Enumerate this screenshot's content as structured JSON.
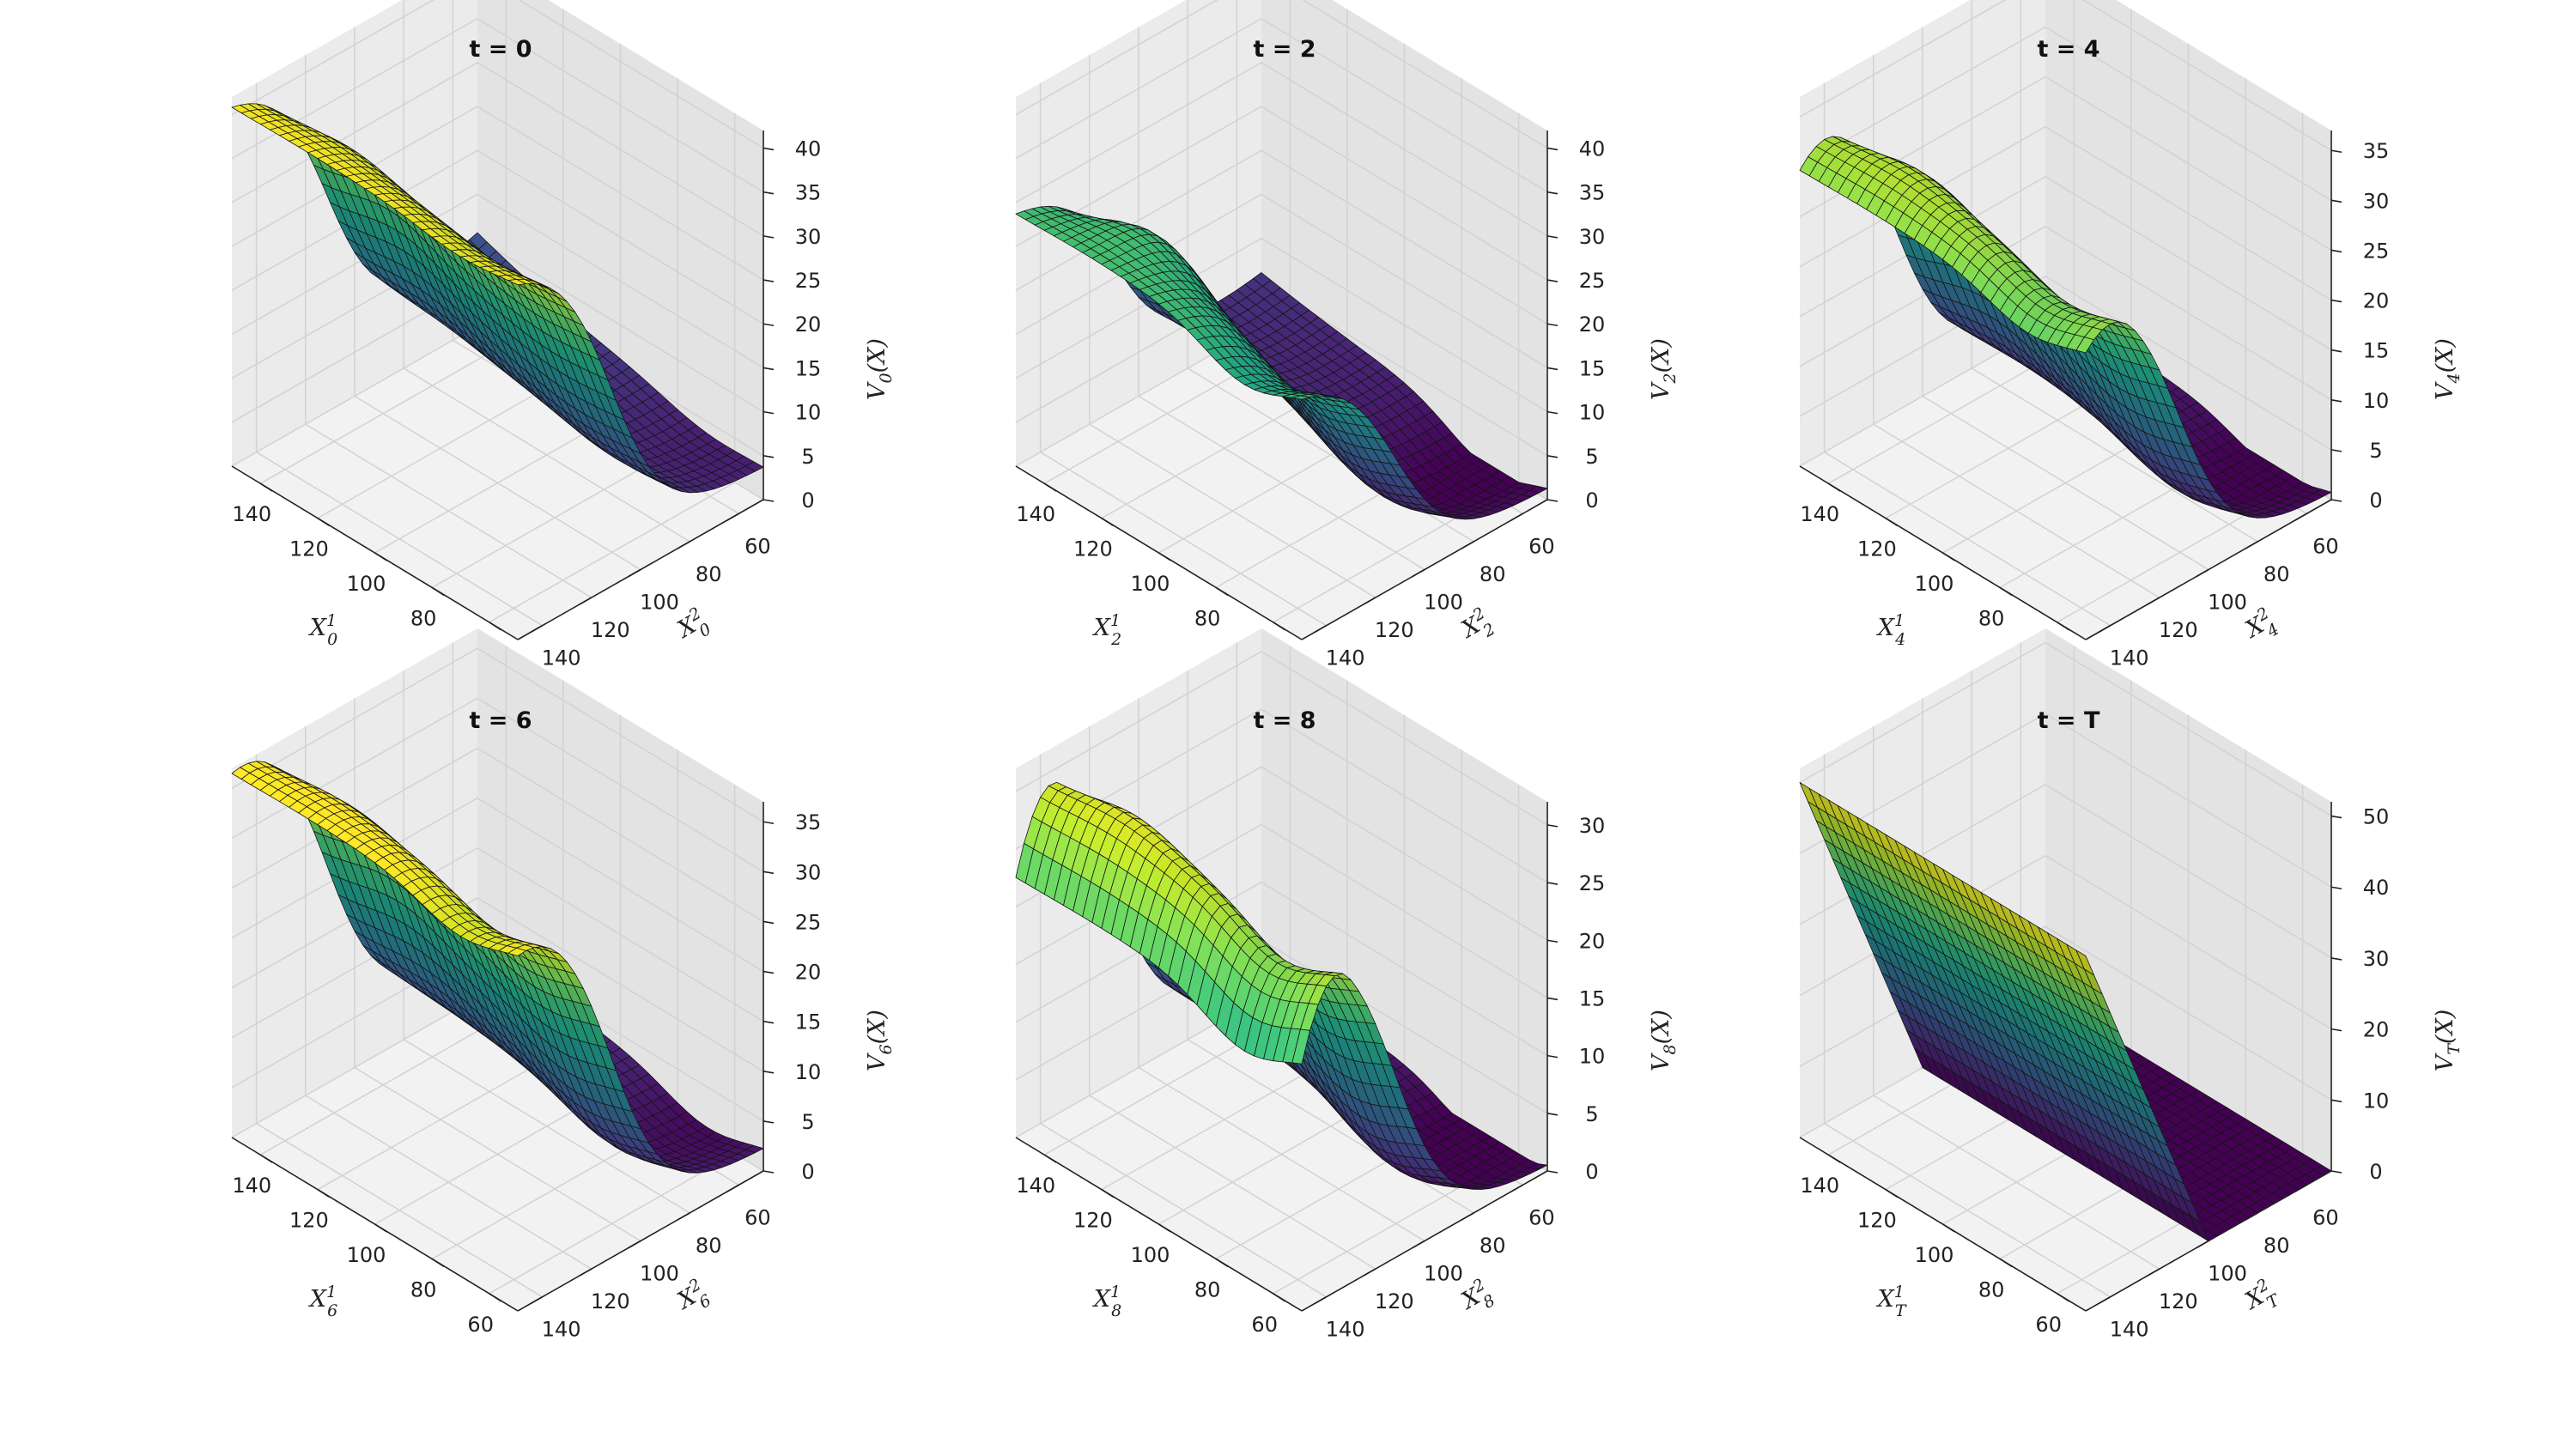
{
  "chart_data": [
    {
      "type": "surface3d",
      "title": "t = 0",
      "xlabel": "X_0^1",
      "ylabel": "X_0^2",
      "zlabel": "V_0(X)",
      "x_range": [
        50,
        150
      ],
      "y_range": [
        50,
        150
      ],
      "zlim": [
        0,
        42
      ],
      "xticks": [
        "60",
        "80",
        "100",
        "120",
        "140"
      ],
      "yticks": [
        "60",
        "80",
        "100",
        "120",
        "140"
      ],
      "zticks": [
        "0",
        "5",
        "10",
        "15",
        "20",
        "25",
        "30",
        "35",
        "40"
      ],
      "params": {
        "k": 38,
        "z0": 4.0,
        "dip": 0.2,
        "edge": 0.3,
        "bump": 3.0,
        "tail": 3.5,
        "topfall": 0
      }
    },
    {
      "type": "surface3d",
      "title": "t = 2",
      "xlabel": "X_2^1",
      "ylabel": "X_2^2",
      "zlabel": "V_2(X)",
      "x_range": [
        50,
        150
      ],
      "y_range": [
        50,
        150
      ],
      "zlim": [
        0,
        42
      ],
      "xticks": [
        "60",
        "80",
        "100",
        "120",
        "140"
      ],
      "yticks": [
        "60",
        "80",
        "100",
        "120",
        "140"
      ],
      "zticks": [
        "0",
        "5",
        "10",
        "15",
        "20",
        "25",
        "30",
        "35",
        "40"
      ],
      "params": {
        "k": 27,
        "z0": 2.5,
        "dip": 0.6,
        "edge": 0.15,
        "bump": 5.5,
        "tail": 2.0,
        "topfall": 0
      }
    },
    {
      "type": "surface3d",
      "title": "t = 4",
      "xlabel": "X_4^1",
      "ylabel": "X_4^2",
      "zlabel": "V_4(X)",
      "x_range": [
        50,
        150
      ],
      "y_range": [
        50,
        150
      ],
      "zlim": [
        0,
        37
      ],
      "xticks": [
        "60",
        "80",
        "100",
        "120",
        "140"
      ],
      "yticks": [
        "60",
        "80",
        "100",
        "120",
        "140"
      ],
      "zticks": [
        "0",
        "5",
        "10",
        "15",
        "20",
        "25",
        "30",
        "35"
      ],
      "params": {
        "k": 33,
        "z0": 1.5,
        "dip": 0.4,
        "edge": 0.05,
        "bump": 3.5,
        "tail": 0.8,
        "topfall": 0.12
      }
    },
    {
      "type": "surface3d",
      "title": "t = 6",
      "xlabel": "X_6^1",
      "ylabel": "X_6^2",
      "zlabel": "V_6(X)",
      "x_range": [
        50,
        150
      ],
      "y_range": [
        50,
        150
      ],
      "zlim": [
        0,
        37
      ],
      "xticks": [
        "60",
        "80",
        "100",
        "120",
        "140"
      ],
      "yticks": [
        "60",
        "80",
        "100",
        "120",
        "140"
      ],
      "zticks": [
        "0",
        "5",
        "10",
        "15",
        "20",
        "25",
        "30",
        "35"
      ],
      "params": {
        "k": 36,
        "z0": 3.0,
        "dip": 0.4,
        "edge": 0.2,
        "bump": 2.5,
        "tail": 1.0,
        "topfall": 0.04
      }
    },
    {
      "type": "surface3d",
      "title": "t = 8",
      "xlabel": "X_8^1",
      "ylabel": "X_8^2",
      "zlabel": "V_8(X)",
      "x_range": [
        50,
        150
      ],
      "y_range": [
        50,
        150
      ],
      "zlim": [
        0,
        32
      ],
      "xticks": [
        "60",
        "80",
        "100",
        "120",
        "140"
      ],
      "yticks": [
        "60",
        "80",
        "100",
        "120",
        "140"
      ],
      "zticks": [
        "0",
        "5",
        "10",
        "15",
        "20",
        "25",
        "30"
      ],
      "params": {
        "k": 31,
        "z0": 1.5,
        "dip": 0.5,
        "edge": 0.1,
        "bump": 3.0,
        "tail": 0.5,
        "topfall": 0.3
      }
    },
    {
      "type": "surface3d",
      "title": "t = T",
      "xlabel": "X_T^1",
      "ylabel": "X_T^2",
      "zlabel": "V_T(X)",
      "x_range": [
        50,
        150
      ],
      "y_range": [
        50,
        150
      ],
      "zlim": [
        0,
        52
      ],
      "xticks": [
        "60",
        "80",
        "100",
        "120",
        "140"
      ],
      "yticks": [
        "60",
        "80",
        "100",
        "120",
        "140"
      ],
      "zticks": [
        "0",
        "10",
        "20",
        "30",
        "40",
        "50"
      ],
      "params": {
        "payoff": true,
        "strike": 100
      }
    }
  ]
}
